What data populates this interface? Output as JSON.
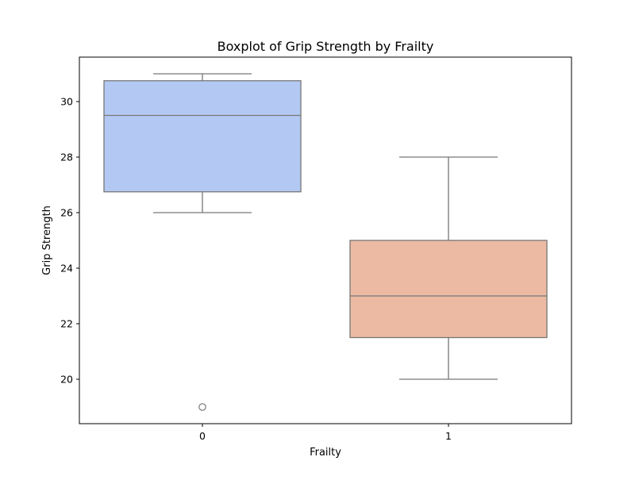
{
  "chart_data": {
    "type": "boxplot",
    "title": "Boxplot of Grip Strength by Frailty",
    "xlabel": "Frailty",
    "ylabel": "Grip Strength",
    "categories": [
      "0",
      "1"
    ],
    "ylim": [
      18.4,
      31.6
    ],
    "yticks": [
      20,
      22,
      24,
      26,
      28,
      30
    ],
    "grid": false,
    "boxes": [
      {
        "category": "0",
        "whisker_low": 26,
        "q1": 26.75,
        "median": 29.5,
        "q3": 30.75,
        "whisker_high": 31,
        "outliers": [
          19
        ],
        "color": "#b3c9f3"
      },
      {
        "category": "1",
        "whisker_low": 20,
        "q1": 21.5,
        "median": 23,
        "q3": 25,
        "whisker_high": 28,
        "outliers": [],
        "color": "#ecbaa3"
      }
    ],
    "line_color": "#777777"
  }
}
